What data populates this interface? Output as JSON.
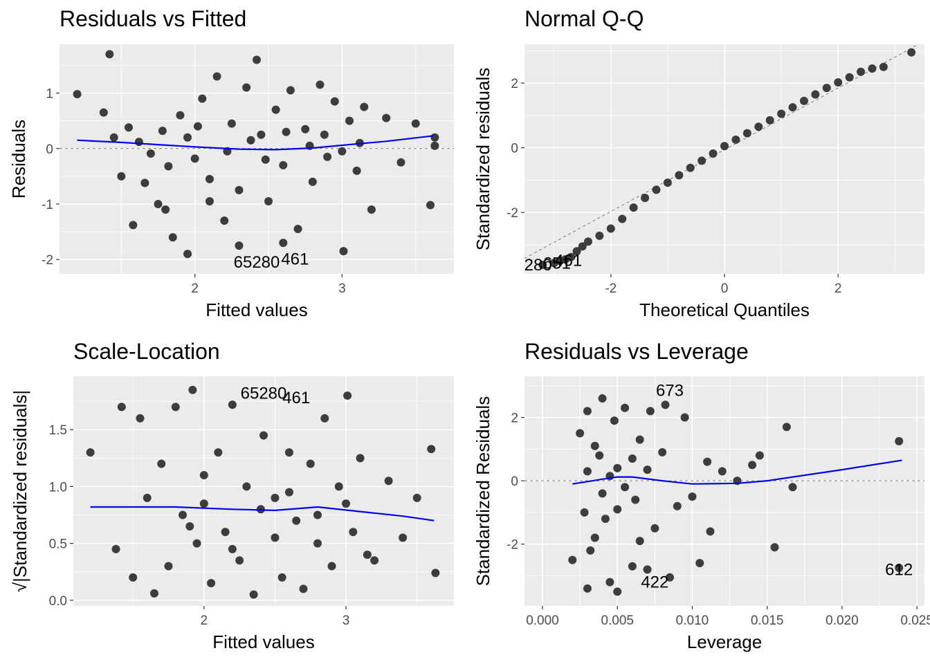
{
  "chart_data": [
    {
      "id": "rvf",
      "type": "scatter",
      "title": "Residuals vs Fitted",
      "xlabel": "Fitted values",
      "ylabel": "Residuals",
      "xlim": [
        1.08,
        3.76
      ],
      "ylim": [
        -2.26,
        1.88
      ],
      "xticks": [
        2,
        3
      ],
      "yticks": [
        -2,
        -1,
        0,
        1
      ],
      "ref_line": 0,
      "point_color": "#3d3d3d",
      "smooth_color": "#0000ee",
      "smooth": [
        [
          1.2,
          0.15
        ],
        [
          1.5,
          0.11
        ],
        [
          2.0,
          0.03
        ],
        [
          2.3,
          -0.01
        ],
        [
          2.55,
          -0.02
        ],
        [
          2.8,
          0.01
        ],
        [
          3.0,
          0.06
        ],
        [
          3.3,
          0.13
        ],
        [
          3.62,
          0.23
        ]
      ],
      "points": [
        [
          1.2,
          0.98
        ],
        [
          1.42,
          1.7
        ],
        [
          1.38,
          0.65
        ],
        [
          1.45,
          0.2
        ],
        [
          1.5,
          -0.5
        ],
        [
          1.55,
          0.38
        ],
        [
          1.58,
          -1.38
        ],
        [
          1.62,
          0.12
        ],
        [
          1.66,
          -0.62
        ],
        [
          1.7,
          -0.09
        ],
        [
          1.75,
          -1.0
        ],
        [
          1.78,
          0.32
        ],
        [
          1.82,
          -0.32
        ],
        [
          1.85,
          -1.6
        ],
        [
          1.9,
          0.6
        ],
        [
          1.95,
          0.2
        ],
        [
          2.0,
          -0.18
        ],
        [
          1.95,
          -1.9
        ],
        [
          2.05,
          0.9
        ],
        [
          2.1,
          -0.55
        ],
        [
          2.15,
          1.3
        ],
        [
          2.2,
          -1.3
        ],
        [
          2.25,
          0.45
        ],
        [
          2.3,
          -0.75
        ],
        [
          2.35,
          1.1
        ],
        [
          2.42,
          1.6
        ],
        [
          2.45,
          0.25
        ],
        [
          2.5,
          -0.95
        ],
        [
          2.55,
          0.7
        ],
        [
          2.6,
          -0.3
        ],
        [
          2.65,
          1.05
        ],
        [
          2.7,
          -1.45
        ],
        [
          2.75,
          0.35
        ],
        [
          2.8,
          -0.6
        ],
        [
          2.85,
          1.15
        ],
        [
          2.9,
          -0.15
        ],
        [
          2.95,
          0.85
        ],
        [
          3.01,
          -1.85
        ],
        [
          3.05,
          0.5
        ],
        [
          3.1,
          -0.4
        ],
        [
          3.15,
          0.75
        ],
        [
          3.2,
          -1.1
        ],
        [
          3.3,
          0.55
        ],
        [
          3.4,
          -0.25
        ],
        [
          3.5,
          0.45
        ],
        [
          3.6,
          -1.02
        ],
        [
          3.63,
          0.05
        ],
        [
          3.63,
          0.2
        ],
        [
          2.02,
          0.4
        ],
        [
          2.22,
          -0.05
        ],
        [
          2.38,
          0.15
        ],
        [
          2.48,
          -0.2
        ],
        [
          2.62,
          0.3
        ],
        [
          2.78,
          0.05
        ],
        [
          2.88,
          0.25
        ],
        [
          3.0,
          -0.05
        ],
        [
          3.12,
          0.1
        ],
        [
          2.3,
          -1.75
        ],
        [
          1.8,
          -1.1
        ],
        [
          2.1,
          -0.95
        ],
        [
          2.6,
          -1.7
        ]
      ],
      "labels": [
        {
          "text": "65280",
          "x": 2.42,
          "y": -2.05
        },
        {
          "text": "461",
          "x": 2.68,
          "y": -1.99
        }
      ]
    },
    {
      "id": "qq",
      "type": "scatter",
      "title": "Normal Q-Q",
      "xlabel": "Theoretical Quantiles",
      "ylabel": "Standardized residuals",
      "xlim": [
        -3.52,
        3.52
      ],
      "ylim": [
        -3.9,
        3.2
      ],
      "xticks": [
        -2,
        0,
        2
      ],
      "yticks": [
        -2,
        0,
        2
      ],
      "point_color": "#3d3d3d",
      "ref_line": [
        [
          -3.52,
          -3.42
        ],
        [
          3.52,
          3.3
        ]
      ],
      "points": [
        [
          -3.2,
          -3.62
        ],
        [
          -3.0,
          -3.56
        ],
        [
          -2.9,
          -3.5
        ],
        [
          -2.8,
          -3.45
        ],
        [
          -2.7,
          -3.38
        ],
        [
          -2.6,
          -3.2
        ],
        [
          -2.5,
          -3.05
        ],
        [
          -2.4,
          -2.9
        ],
        [
          -2.2,
          -2.72
        ],
        [
          -2.0,
          -2.5
        ],
        [
          -1.8,
          -2.2
        ],
        [
          -1.6,
          -1.85
        ],
        [
          -1.4,
          -1.55
        ],
        [
          -1.2,
          -1.3
        ],
        [
          -1.0,
          -1.08
        ],
        [
          -0.8,
          -0.85
        ],
        [
          -0.6,
          -0.62
        ],
        [
          -0.4,
          -0.4
        ],
        [
          -0.2,
          -0.18
        ],
        [
          0.0,
          0.05
        ],
        [
          0.2,
          0.25
        ],
        [
          0.4,
          0.45
        ],
        [
          0.6,
          0.65
        ],
        [
          0.8,
          0.85
        ],
        [
          1.0,
          1.05
        ],
        [
          1.2,
          1.25
        ],
        [
          1.4,
          1.45
        ],
        [
          1.6,
          1.65
        ],
        [
          1.8,
          1.85
        ],
        [
          2.0,
          2.02
        ],
        [
          2.2,
          2.18
        ],
        [
          2.4,
          2.35
        ],
        [
          2.6,
          2.45
        ],
        [
          2.8,
          2.5
        ],
        [
          3.29,
          2.95
        ]
      ],
      "labels": [
        {
          "text": "280",
          "x": -3.28,
          "y": -3.62
        },
        {
          "text": "651",
          "x": -2.95,
          "y": -3.57
        },
        {
          "text": "461",
          "x": -2.75,
          "y": -3.48
        }
      ]
    },
    {
      "id": "sl",
      "type": "scatter",
      "title": "Scale-Location",
      "xlabel": "Fitted values",
      "ylabel": "√|Standardized residuals|",
      "xlim": [
        1.08,
        3.76
      ],
      "ylim": [
        -0.05,
        1.97
      ],
      "xticks": [
        2,
        3
      ],
      "yticks": [
        0.0,
        0.5,
        1.0,
        1.5
      ],
      "yticklabels": [
        "0.0",
        "0.5",
        "1.0",
        "1.5"
      ],
      "point_color": "#3d3d3d",
      "smooth_color": "#0000ee",
      "smooth": [
        [
          1.2,
          0.82
        ],
        [
          1.8,
          0.82
        ],
        [
          2.2,
          0.8
        ],
        [
          2.5,
          0.79
        ],
        [
          2.8,
          0.82
        ],
        [
          3.1,
          0.78
        ],
        [
          3.4,
          0.74
        ],
        [
          3.62,
          0.7
        ]
      ],
      "points": [
        [
          1.2,
          1.3
        ],
        [
          1.38,
          0.45
        ],
        [
          1.42,
          1.7
        ],
        [
          1.5,
          0.2
        ],
        [
          1.55,
          1.6
        ],
        [
          1.6,
          0.9
        ],
        [
          1.65,
          0.06
        ],
        [
          1.7,
          1.2
        ],
        [
          1.75,
          0.3
        ],
        [
          1.8,
          1.7
        ],
        [
          1.85,
          0.75
        ],
        [
          1.92,
          1.85
        ],
        [
          1.95,
          0.5
        ],
        [
          2.0,
          1.1
        ],
        [
          2.05,
          0.15
        ],
        [
          2.1,
          1.3
        ],
        [
          2.15,
          0.6
        ],
        [
          2.2,
          1.72
        ],
        [
          2.25,
          0.35
        ],
        [
          2.3,
          1.0
        ],
        [
          2.35,
          0.05
        ],
        [
          2.42,
          1.45
        ],
        [
          2.5,
          0.9
        ],
        [
          2.55,
          0.2
        ],
        [
          2.6,
          1.3
        ],
        [
          2.65,
          0.7
        ],
        [
          2.7,
          0.1
        ],
        [
          2.75,
          1.2
        ],
        [
          2.8,
          0.5
        ],
        [
          2.85,
          1.6
        ],
        [
          2.9,
          0.3
        ],
        [
          2.95,
          1.0
        ],
        [
          3.01,
          1.8
        ],
        [
          3.05,
          0.6
        ],
        [
          3.1,
          1.25
        ],
        [
          3.2,
          0.35
        ],
        [
          3.3,
          1.05
        ],
        [
          3.4,
          0.55
        ],
        [
          3.5,
          0.9
        ],
        [
          3.6,
          1.33
        ],
        [
          3.63,
          0.24
        ],
        [
          2.0,
          0.85
        ],
        [
          2.4,
          0.8
        ],
        [
          2.6,
          0.95
        ],
        [
          2.8,
          0.75
        ],
        [
          3.0,
          0.85
        ],
        [
          1.9,
          0.65
        ],
        [
          2.2,
          0.45
        ],
        [
          2.5,
          0.55
        ],
        [
          3.15,
          0.4
        ]
      ],
      "labels": [
        {
          "text": "65280",
          "x": 2.42,
          "y": 1.82
        },
        {
          "text": "461",
          "x": 2.65,
          "y": 1.78
        }
      ]
    },
    {
      "id": "rvl",
      "type": "scatter",
      "title": "Residuals vs Leverage",
      "xlabel": "Leverage",
      "ylabel": "Standardized Residuals",
      "xlim": [
        -0.0012,
        0.0255
      ],
      "ylim": [
        -3.95,
        3.3
      ],
      "xticks": [
        0.0,
        0.005,
        0.01,
        0.015,
        0.02,
        0.025
      ],
      "xticklabels": [
        "0.000",
        "0.005",
        "0.010",
        "0.015",
        "0.020",
        "0.025"
      ],
      "yticks": [
        -2,
        0,
        2
      ],
      "ref_line": 0,
      "point_color": "#3d3d3d",
      "smooth_color": "#0000ee",
      "smooth": [
        [
          0.002,
          -0.1
        ],
        [
          0.004,
          0.05
        ],
        [
          0.005,
          0.12
        ],
        [
          0.006,
          0.12
        ],
        [
          0.008,
          0.0
        ],
        [
          0.01,
          -0.1
        ],
        [
          0.013,
          -0.08
        ],
        [
          0.015,
          0.0
        ],
        [
          0.02,
          0.35
        ],
        [
          0.024,
          0.65
        ]
      ],
      "points": [
        [
          0.002,
          -2.5
        ],
        [
          0.0025,
          1.5
        ],
        [
          0.003,
          -3.4
        ],
        [
          0.003,
          2.2
        ],
        [
          0.0035,
          -1.8
        ],
        [
          0.0038,
          0.8
        ],
        [
          0.004,
          2.6
        ],
        [
          0.0042,
          -1.2
        ],
        [
          0.0045,
          -3.2
        ],
        [
          0.0048,
          1.9
        ],
        [
          0.005,
          -3.5
        ],
        [
          0.005,
          0.4
        ],
        [
          0.0055,
          2.3
        ],
        [
          0.006,
          -2.7
        ],
        [
          0.0062,
          -0.6
        ],
        [
          0.0065,
          1.3
        ],
        [
          0.007,
          -2.8
        ],
        [
          0.0072,
          2.2
        ],
        [
          0.0075,
          -1.5
        ],
        [
          0.008,
          0.9
        ],
        [
          0.0082,
          2.4
        ],
        [
          0.0085,
          -3.05
        ],
        [
          0.009,
          -0.8
        ],
        [
          0.0095,
          2.0
        ],
        [
          0.01,
          -0.5
        ],
        [
          0.0105,
          -2.6
        ],
        [
          0.011,
          0.6
        ],
        [
          0.0112,
          -1.6
        ],
        [
          0.012,
          0.3
        ],
        [
          0.013,
          0.0
        ],
        [
          0.014,
          0.5
        ],
        [
          0.0145,
          0.8
        ],
        [
          0.0155,
          -2.1
        ],
        [
          0.0163,
          1.7
        ],
        [
          0.0167,
          -0.2
        ],
        [
          0.0238,
          1.25
        ],
        [
          0.0238,
          -2.75
        ],
        [
          0.003,
          0.3
        ],
        [
          0.004,
          -0.4
        ],
        [
          0.005,
          -0.9
        ],
        [
          0.006,
          0.7
        ],
        [
          0.0035,
          1.1
        ],
        [
          0.0028,
          -1.0
        ],
        [
          0.0045,
          0.15
        ],
        [
          0.0055,
          -0.2
        ],
        [
          0.007,
          0.35
        ],
        [
          0.0065,
          -1.9
        ],
        [
          0.0032,
          -2.2
        ]
      ],
      "labels": [
        {
          "text": "673",
          "x": 0.0085,
          "y": 2.85
        },
        {
          "text": "422",
          "x": 0.0075,
          "y": -3.2
        },
        {
          "text": "612",
          "x": 0.0238,
          "y": -2.8
        }
      ]
    }
  ]
}
